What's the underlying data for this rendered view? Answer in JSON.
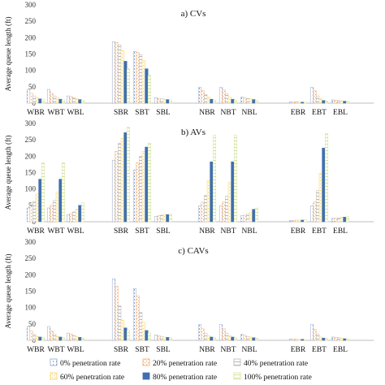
{
  "chart_data": [
    {
      "type": "bar",
      "title": "a) CVs",
      "ylabel": "Average queue length (ft)",
      "ylim": [
        0,
        300
      ],
      "yticks": [
        0,
        50,
        100,
        150,
        200,
        250,
        300
      ],
      "grid": false,
      "legend_position": "bottom",
      "categories": [
        "WBR",
        "WBT",
        "WBL",
        "SBR",
        "SBT",
        "SBL",
        "NBR",
        "NBT",
        "NBL",
        "EBR",
        "EBT",
        "EBL"
      ],
      "series": [
        {
          "name": "0% penetration rate",
          "values": [
            42,
            42,
            22,
            188,
            158,
            16,
            48,
            48,
            18,
            4,
            48,
            10
          ]
        },
        {
          "name": "20% penetration rate",
          "values": [
            30,
            30,
            20,
            185,
            155,
            14,
            38,
            40,
            16,
            4,
            38,
            9
          ]
        },
        {
          "name": "40% penetration rate",
          "values": [
            22,
            22,
            16,
            178,
            148,
            13,
            26,
            28,
            14,
            4,
            22,
            8
          ]
        },
        {
          "name": "60% penetration rate",
          "values": [
            16,
            16,
            13,
            160,
            130,
            12,
            18,
            18,
            13,
            3,
            14,
            7
          ]
        },
        {
          "name": "80% penetration rate",
          "values": [
            13,
            12,
            11,
            128,
            105,
            11,
            12,
            12,
            11,
            3,
            8,
            6
          ]
        },
        {
          "name": "100% penetration rate",
          "values": [
            11,
            10,
            9,
            105,
            85,
            10,
            9,
            9,
            9,
            3,
            6,
            5
          ]
        }
      ]
    },
    {
      "type": "bar",
      "title": "b) AVs",
      "ylabel": "Average queue length (ft)",
      "ylim": [
        0,
        300
      ],
      "yticks": [
        0,
        50,
        100,
        150,
        200,
        250,
        300
      ],
      "grid": false,
      "legend_position": "bottom",
      "categories": [
        "WBR",
        "WBT",
        "WBL",
        "SBR",
        "SBT",
        "SBL",
        "NBR",
        "NBT",
        "NBL",
        "EBR",
        "EBT",
        "EBL"
      ],
      "series": [
        {
          "name": "0% penetration rate",
          "values": [
            42,
            42,
            22,
            188,
            158,
            16,
            48,
            48,
            18,
            4,
            48,
            10
          ]
        },
        {
          "name": "20% penetration rate",
          "values": [
            48,
            50,
            25,
            215,
            180,
            18,
            60,
            60,
            20,
            4,
            60,
            11
          ]
        },
        {
          "name": "40% penetration rate",
          "values": [
            62,
            65,
            30,
            240,
            200,
            20,
            80,
            78,
            23,
            5,
            95,
            12
          ]
        },
        {
          "name": "60% penetration rate",
          "values": [
            85,
            90,
            38,
            255,
            215,
            21,
            125,
            120,
            28,
            5,
            148,
            13
          ]
        },
        {
          "name": "80% penetration rate",
          "values": [
            130,
            130,
            50,
            272,
            228,
            22,
            183,
            183,
            38,
            5,
            225,
            14
          ]
        },
        {
          "name": "100% penetration rate",
          "values": [
            180,
            180,
            58,
            288,
            240,
            24,
            265,
            265,
            42,
            6,
            270,
            16
          ]
        }
      ]
    },
    {
      "type": "bar",
      "title": "c) CAVs",
      "ylabel": "Average queue length (ft)",
      "ylim": [
        0,
        300
      ],
      "yticks": [
        0,
        50,
        100,
        150,
        200,
        250,
        300
      ],
      "grid": false,
      "legend_position": "bottom",
      "categories": [
        "WBR",
        "WBT",
        "WBL",
        "SBR",
        "SBT",
        "SBL",
        "NBR",
        "NBT",
        "NBL",
        "EBR",
        "EBT",
        "EBL"
      ],
      "series": [
        {
          "name": "0% penetration rate",
          "values": [
            42,
            42,
            22,
            188,
            158,
            16,
            48,
            48,
            18,
            4,
            48,
            10
          ]
        },
        {
          "name": "20% penetration rate",
          "values": [
            28,
            28,
            18,
            165,
            135,
            14,
            35,
            35,
            15,
            4,
            33,
            9
          ]
        },
        {
          "name": "40% penetration rate",
          "values": [
            18,
            18,
            14,
            105,
            85,
            12,
            22,
            22,
            12,
            3,
            18,
            8
          ]
        },
        {
          "name": "60% penetration rate",
          "values": [
            12,
            12,
            11,
            62,
            55,
            10,
            14,
            14,
            10,
            3,
            10,
            6
          ]
        },
        {
          "name": "80% penetration rate",
          "values": [
            10,
            10,
            9,
            38,
            30,
            9,
            10,
            10,
            8,
            3,
            7,
            5
          ]
        },
        {
          "name": "100% penetration rate",
          "values": [
            8,
            8,
            7,
            30,
            22,
            8,
            8,
            8,
            7,
            2,
            5,
            4
          ]
        }
      ]
    }
  ],
  "series_colors": [
    "#8fa6cf",
    "#f2a970",
    "#b8b8b8",
    "#ffd24d",
    "#3f6fb0",
    "#d2e39a"
  ],
  "series_patterns": [
    "vertical-dash",
    "dotted",
    "horizontal-hatch",
    "dotted",
    "solid",
    "horizontal-hatch"
  ]
}
